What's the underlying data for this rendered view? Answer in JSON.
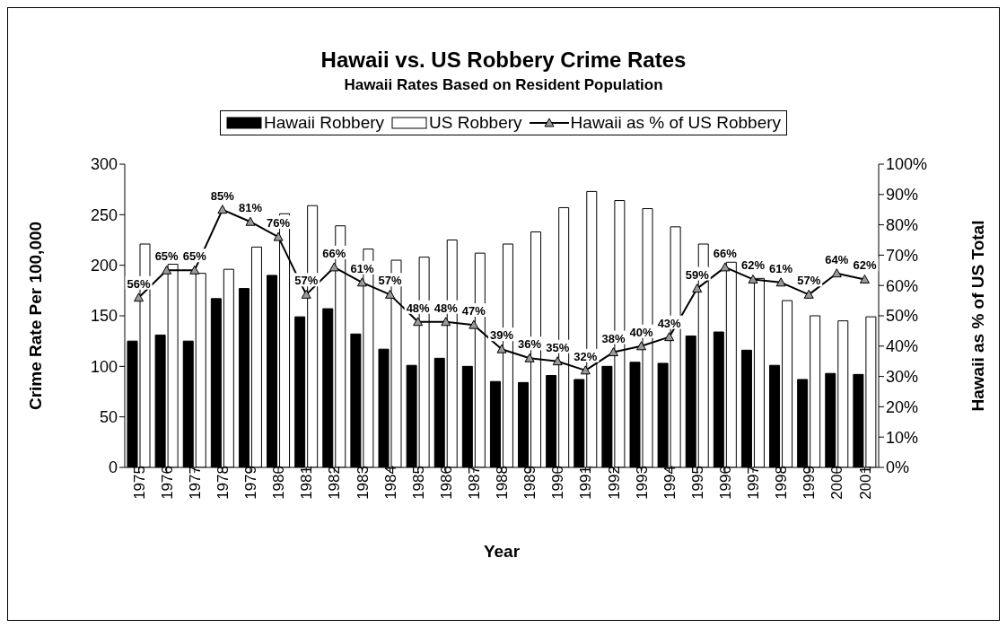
{
  "chart_data": {
    "type": "bar",
    "title": "Hawaii vs. US Robbery Crime Rates",
    "subtitle": "Hawaii Rates Based on Resident Population",
    "xlabel": "Year",
    "ylabel": "Crime Rate Per 100,000",
    "y2label": "Hawaii as % of US Total",
    "categories": [
      "1975",
      "1976",
      "1977",
      "1978",
      "1979",
      "1980",
      "1981",
      "1982",
      "1983",
      "1984",
      "1985",
      "1986",
      "1987",
      "1988",
      "1989",
      "1990",
      "1991",
      "1992",
      "1993",
      "1994",
      "1995",
      "1996",
      "1997",
      "1998",
      "1999",
      "2000",
      "2001"
    ],
    "series": [
      {
        "name": "Hawaii Robbery",
        "color": "#000000",
        "values": [
          125,
          131,
          125,
          167,
          177,
          190,
          149,
          157,
          132,
          117,
          101,
          108,
          100,
          85,
          84,
          91,
          87,
          100,
          104,
          103,
          130,
          134,
          116,
          101,
          87,
          93,
          92
        ]
      },
      {
        "name": "US Robbery",
        "color": "#ffffff",
        "values": [
          221,
          201,
          192,
          196,
          218,
          251,
          259,
          239,
          216,
          205,
          208,
          225,
          212,
          221,
          233,
          257,
          273,
          264,
          256,
          238,
          221,
          203,
          187,
          165,
          150,
          145,
          149
        ]
      },
      {
        "name": "Hawaii as % of US Robbery",
        "type": "line",
        "axis": "y2",
        "color": "#000000",
        "marker": "triangle",
        "values": [
          56,
          65,
          65,
          85,
          81,
          76,
          57,
          66,
          61,
          57,
          48,
          48,
          47,
          39,
          36,
          35,
          32,
          38,
          40,
          43,
          59,
          66,
          62,
          61,
          57,
          64,
          62
        ],
        "value_labels": [
          "56%",
          "65%",
          "65%",
          "85%",
          "81%",
          "76%",
          "57%",
          "66%",
          "61%",
          "57%",
          "48%",
          "48%",
          "47%",
          "39%",
          "36%",
          "35%",
          "32%",
          "38%",
          "40%",
          "43%",
          "59%",
          "66%",
          "62%",
          "61%",
          "57%",
          "64%",
          "62%"
        ]
      }
    ],
    "ylim": [
      0,
      300
    ],
    "yticks": [
      0,
      50,
      100,
      150,
      200,
      250,
      300
    ],
    "y2lim": [
      0,
      100
    ],
    "y2ticks": [
      {
        "value": 0,
        "label": "0%"
      },
      {
        "value": 10,
        "label": "10%"
      },
      {
        "value": 20,
        "label": "20%"
      },
      {
        "value": 30,
        "label": "30%"
      },
      {
        "value": 40,
        "label": "40%"
      },
      {
        "value": 50,
        "label": "50%"
      },
      {
        "value": 60,
        "label": "60%"
      },
      {
        "value": 70,
        "label": "70%"
      },
      {
        "value": 80,
        "label": "80%"
      },
      {
        "value": 90,
        "label": "90%"
      },
      {
        "value": 100,
        "label": "100%"
      }
    ],
    "grid": false,
    "legend": "top"
  }
}
